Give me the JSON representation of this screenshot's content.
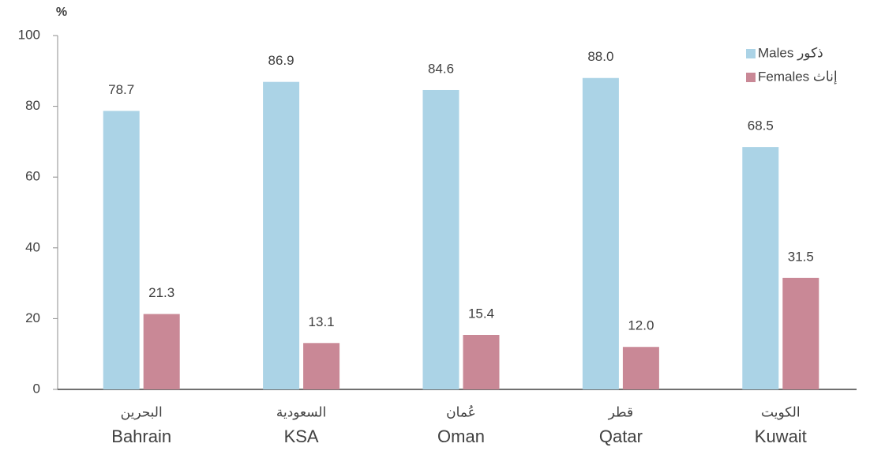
{
  "chart_data": {
    "type": "bar",
    "ylabel": "%",
    "categories": [
      "Bahrain",
      "KSA",
      "Oman",
      "Qatar",
      "Kuwait"
    ],
    "categories_ar": [
      "البحرين",
      "السعودية",
      "عُمان",
      "قطر",
      "الكويت"
    ],
    "series": [
      {
        "name": "Males ذكور",
        "color": "#abd3e6",
        "values": [
          78.7,
          86.9,
          84.6,
          88.0,
          68.5
        ],
        "value_labels": [
          "78.7",
          "86.9",
          "84.6",
          "88.0",
          "68.5"
        ]
      },
      {
        "name": "Females إناث",
        "color": "#c98896",
        "values": [
          21.3,
          13.1,
          15.4,
          12.0,
          31.5
        ],
        "value_labels": [
          "21.3",
          "13.1",
          "15.4",
          "12.0",
          "31.5"
        ]
      }
    ],
    "ylim": [
      0,
      100
    ],
    "yticks": [
      0,
      20,
      40,
      60,
      80,
      100
    ],
    "grid": false,
    "legend": "upper right"
  }
}
